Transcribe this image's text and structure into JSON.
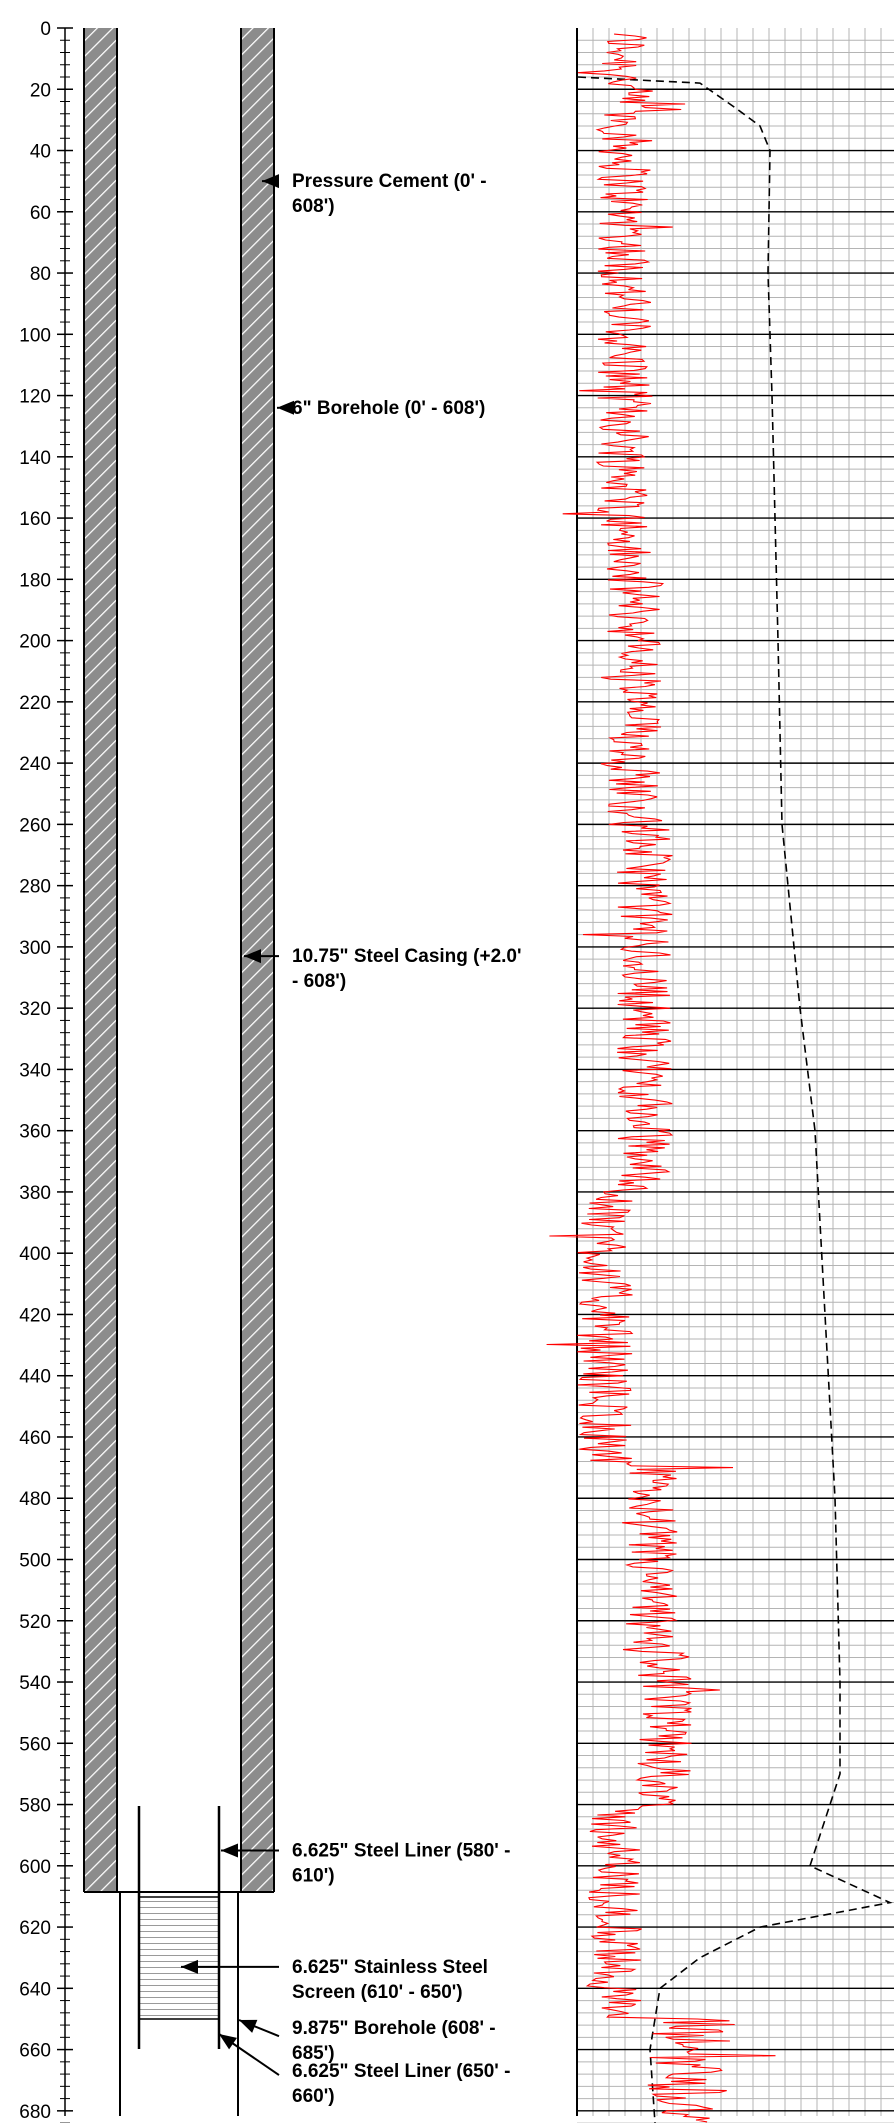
{
  "depth_axis": {
    "ticks": [
      0,
      20,
      40,
      60,
      80,
      100,
      120,
      140,
      160,
      180,
      200,
      220,
      240,
      260,
      280,
      300,
      320,
      340,
      360,
      380,
      400,
      420,
      440,
      460,
      480,
      500,
      520,
      540,
      560,
      580,
      600,
      620,
      640,
      660,
      680
    ],
    "range": [
      0,
      688
    ]
  },
  "callouts": [
    {
      "id": "pressure-cement",
      "lines": [
        "Pressure Cement (0' -",
        "608')"
      ],
      "depth": 50,
      "target": "cement"
    },
    {
      "id": "borehole-6",
      "lines": [
        "6\" Borehole (0' - 608')"
      ],
      "depth": 124,
      "target": "borehole"
    },
    {
      "id": "steel-casing",
      "lines": [
        "10.75\" Steel Casing (+2.0'",
        "- 608')"
      ],
      "depth": 303,
      "target": "casing"
    },
    {
      "id": "steel-liner-upper",
      "lines": [
        "6.625\" Steel Liner (580' -",
        "610')"
      ],
      "depth": 595,
      "target": "liner"
    },
    {
      "id": "stainless-screen",
      "lines": [
        "6.625\" Stainless Steel",
        "Screen (610' - 650')"
      ],
      "depth": 633,
      "target": "screen"
    },
    {
      "id": "borehole-9875",
      "lines": [
        "9.875\" Borehole (608' -",
        "685')"
      ],
      "depth": 653,
      "target": "borehole2"
    },
    {
      "id": "steel-liner-lower",
      "lines": [
        "6.625\" Steel Liner (650' -",
        "660')"
      ],
      "depth": 667,
      "target": "liner2"
    }
  ],
  "well_construction": {
    "cement_interval": [
      0,
      608
    ],
    "casing_interval": [
      -2,
      608
    ],
    "upper_liner_interval": [
      580,
      610
    ],
    "screen_interval": [
      610,
      650
    ],
    "lower_liner_interval": [
      650,
      660
    ],
    "open_borehole_interval": [
      608,
      685
    ]
  },
  "colors": {
    "annulus_fill": "#8c8c8c",
    "hatch_line": "#ffffff",
    "red_trace": "#ff0000",
    "black_trace": "#000000",
    "major_grid": "#000000",
    "minor_grid": "#b4b4b4"
  }
}
